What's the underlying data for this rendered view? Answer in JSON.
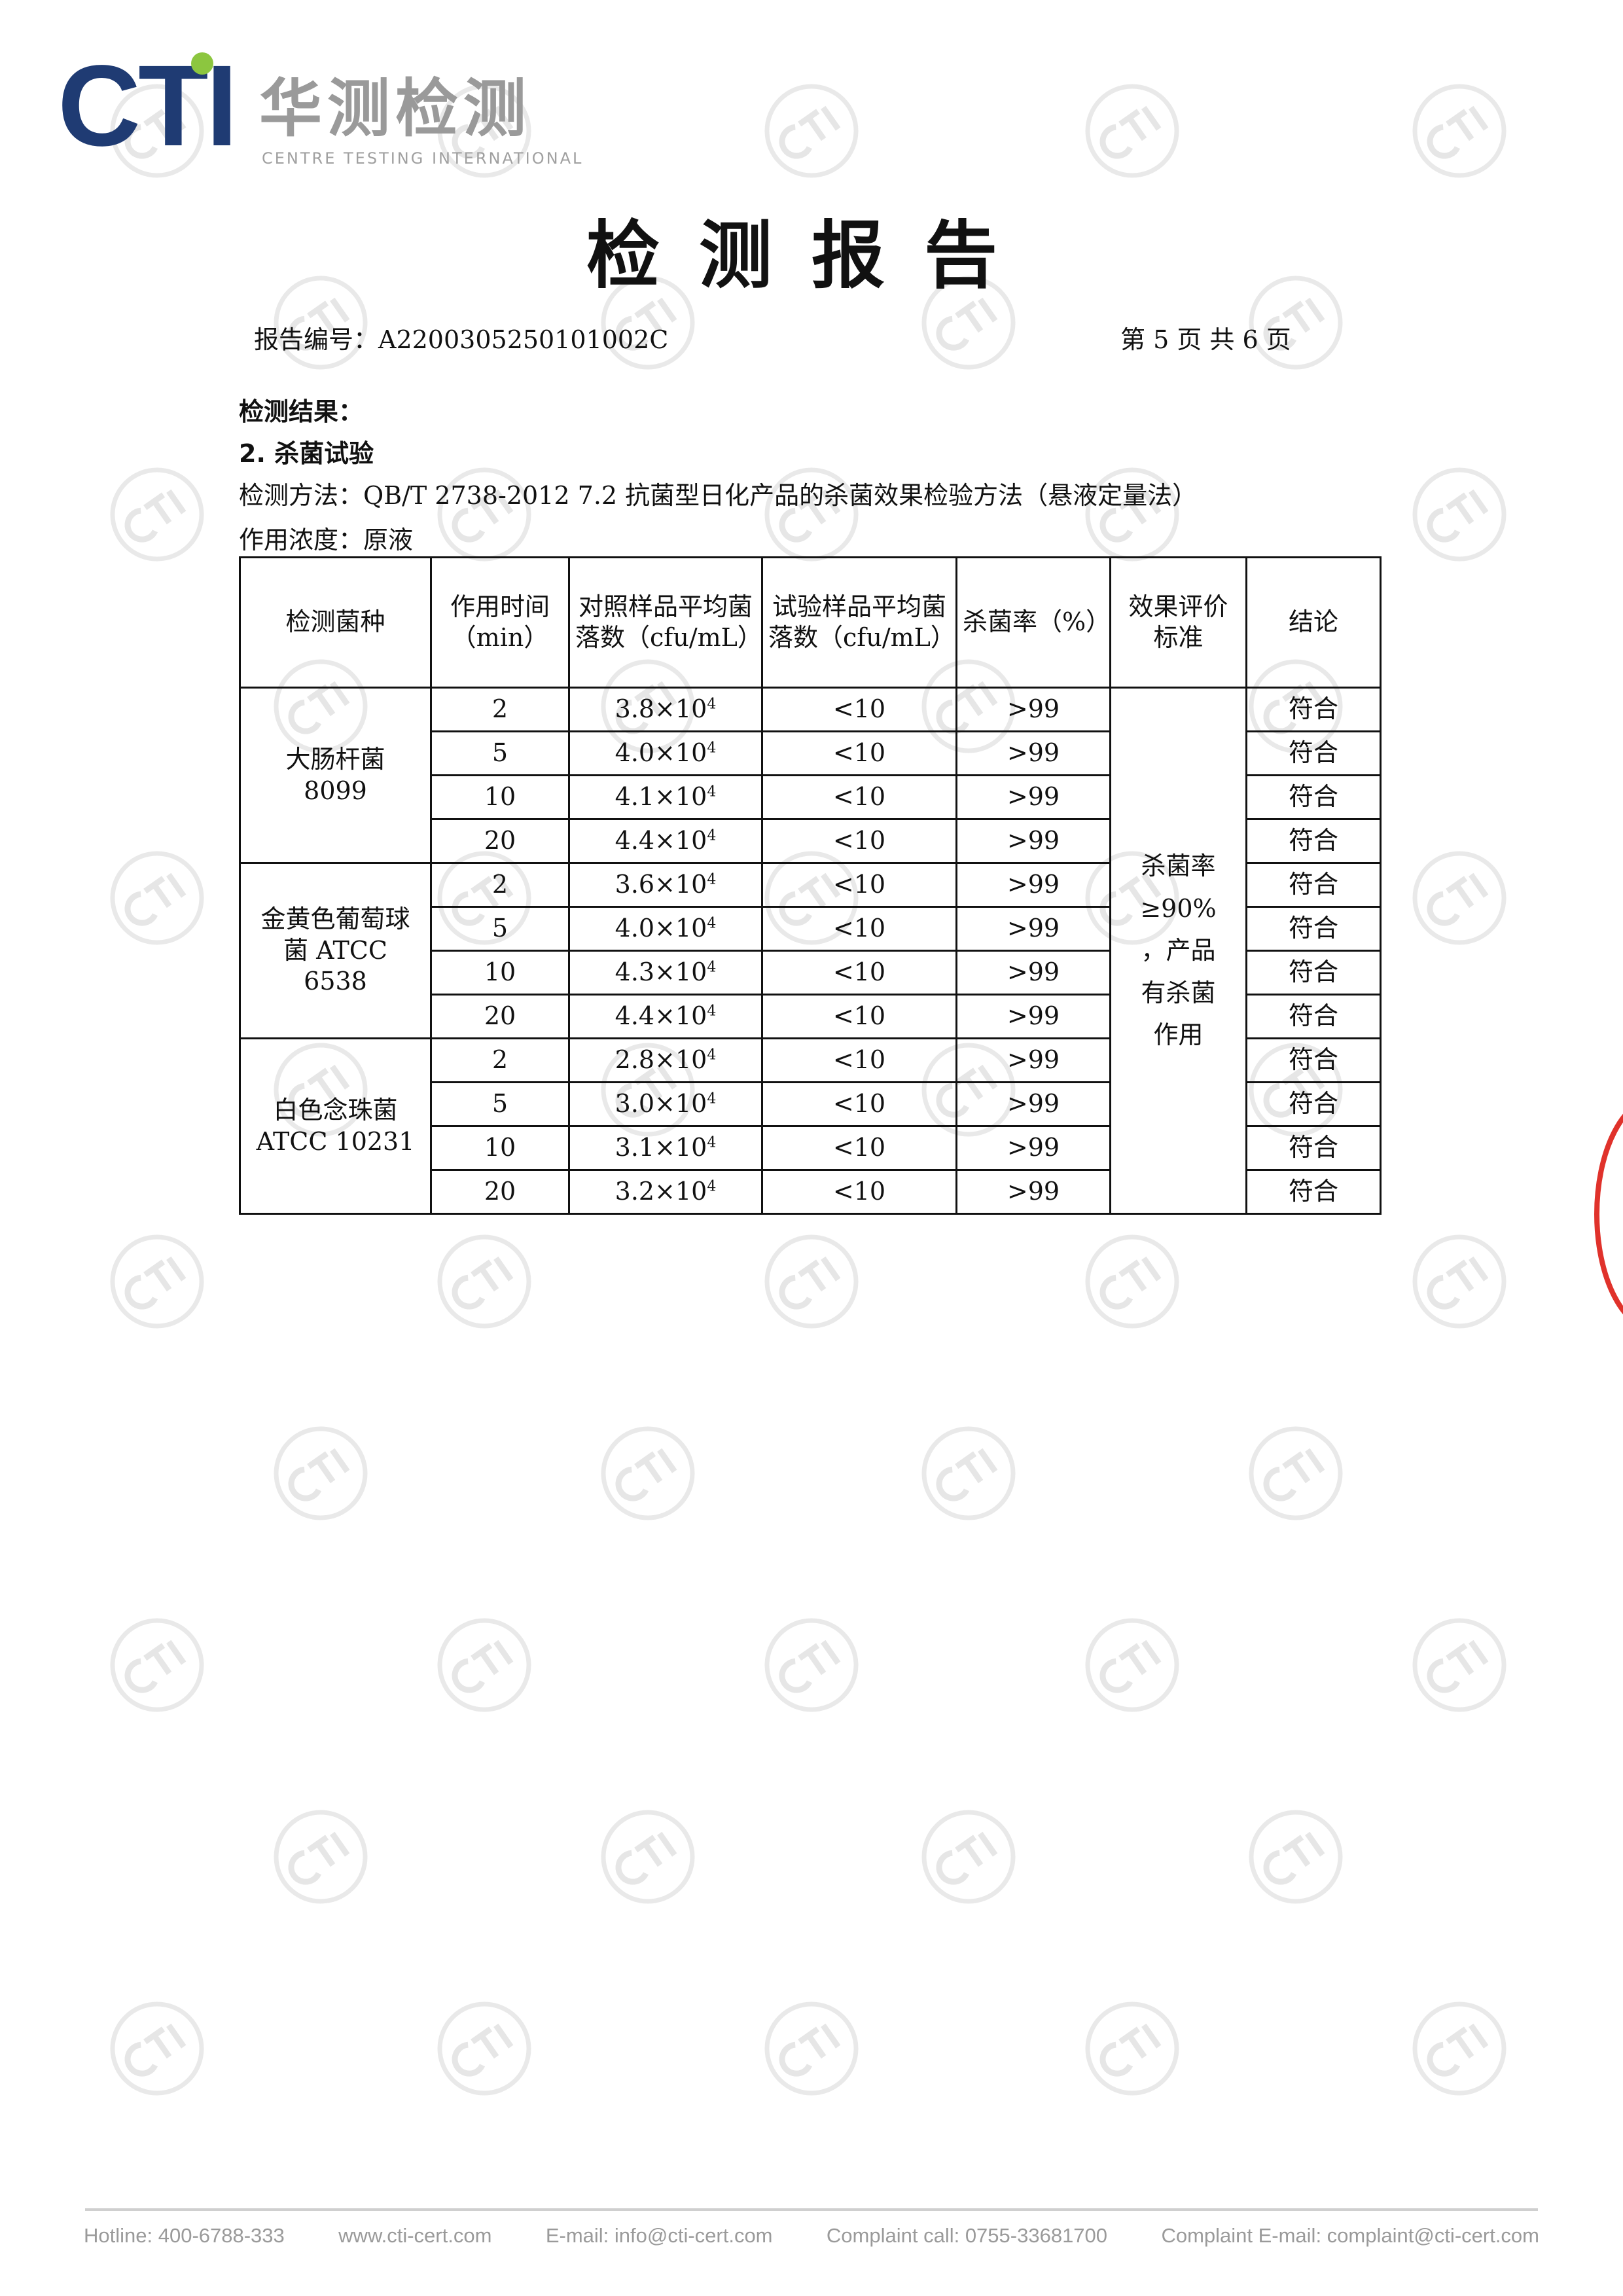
{
  "logo": {
    "brand": "CTI",
    "name_cn": "华测检测",
    "name_en": "CENTRE TESTING INTERNATIONAL",
    "colors": {
      "brand": "#1f3b73",
      "dot": "#8cc63f"
    }
  },
  "watermark": {
    "text": "CTI"
  },
  "title": "检测报告",
  "report_no_label": "报告编号：",
  "report_no": "A2200305250101002C",
  "page_info": "第 5 页 共 6 页",
  "section_heading": "检测结果：",
  "subsection": "2. 杀菌试验",
  "method": "检测方法：QB/T 2738-2012 7.2 抗菌型日化产品的杀菌效果检验方法（悬液定量法）",
  "concentration": "作用浓度：原液",
  "table": {
    "headers": [
      "检测菌种",
      "作用时间（min）",
      "对照样品平均菌落数（cfu/mL）",
      "试验样品平均菌落数（cfu/mL）",
      "杀菌率（%）",
      "效果评价标准",
      "结论"
    ],
    "standard": "杀菌率≥90%，产品有杀菌作用",
    "groups": [
      {
        "strain": "大肠杆菌 8099",
        "rows": [
          {
            "time": "2",
            "control": "3.8×10",
            "exp": "4",
            "test": "<10",
            "rate": ">99",
            "result": "符合"
          },
          {
            "time": "5",
            "control": "4.0×10",
            "exp": "4",
            "test": "<10",
            "rate": ">99",
            "result": "符合"
          },
          {
            "time": "10",
            "control": "4.1×10",
            "exp": "4",
            "test": "<10",
            "rate": ">99",
            "result": "符合"
          },
          {
            "time": "20",
            "control": "4.4×10",
            "exp": "4",
            "test": "<10",
            "rate": ">99",
            "result": "符合"
          }
        ]
      },
      {
        "strain": "金黄色葡萄球菌 ATCC 6538",
        "rows": [
          {
            "time": "2",
            "control": "3.6×10",
            "exp": "4",
            "test": "<10",
            "rate": ">99",
            "result": "符合"
          },
          {
            "time": "5",
            "control": "4.0×10",
            "exp": "4",
            "test": "<10",
            "rate": ">99",
            "result": "符合"
          },
          {
            "time": "10",
            "control": "4.3×10",
            "exp": "4",
            "test": "<10",
            "rate": ">99",
            "result": "符合"
          },
          {
            "time": "20",
            "control": "4.4×10",
            "exp": "4",
            "test": "<10",
            "rate": ">99",
            "result": "符合"
          }
        ]
      },
      {
        "strain": "白色念珠菌 ATCC 10231",
        "rows": [
          {
            "time": "2",
            "control": "2.8×10",
            "exp": "4",
            "test": "<10",
            "rate": ">99",
            "result": "符合"
          },
          {
            "time": "5",
            "control": "3.0×10",
            "exp": "4",
            "test": "<10",
            "rate": ">99",
            "result": "符合"
          },
          {
            "time": "10",
            "control": "3.1×10",
            "exp": "4",
            "test": "<10",
            "rate": ">99",
            "result": "符合"
          },
          {
            "time": "20",
            "control": "3.2×10",
            "exp": "4",
            "test": "<10",
            "rate": ">99",
            "result": "符合"
          }
        ]
      }
    ]
  },
  "footer": [
    "Hotline: 400-6788-333",
    "www.cti-cert.com",
    "E-mail: info@cti-cert.com",
    "Complaint call: 0755-33681700",
    "Complaint E-mail: complaint@cti-cert.com"
  ],
  "seal": {
    "color": "#e0322b"
  }
}
